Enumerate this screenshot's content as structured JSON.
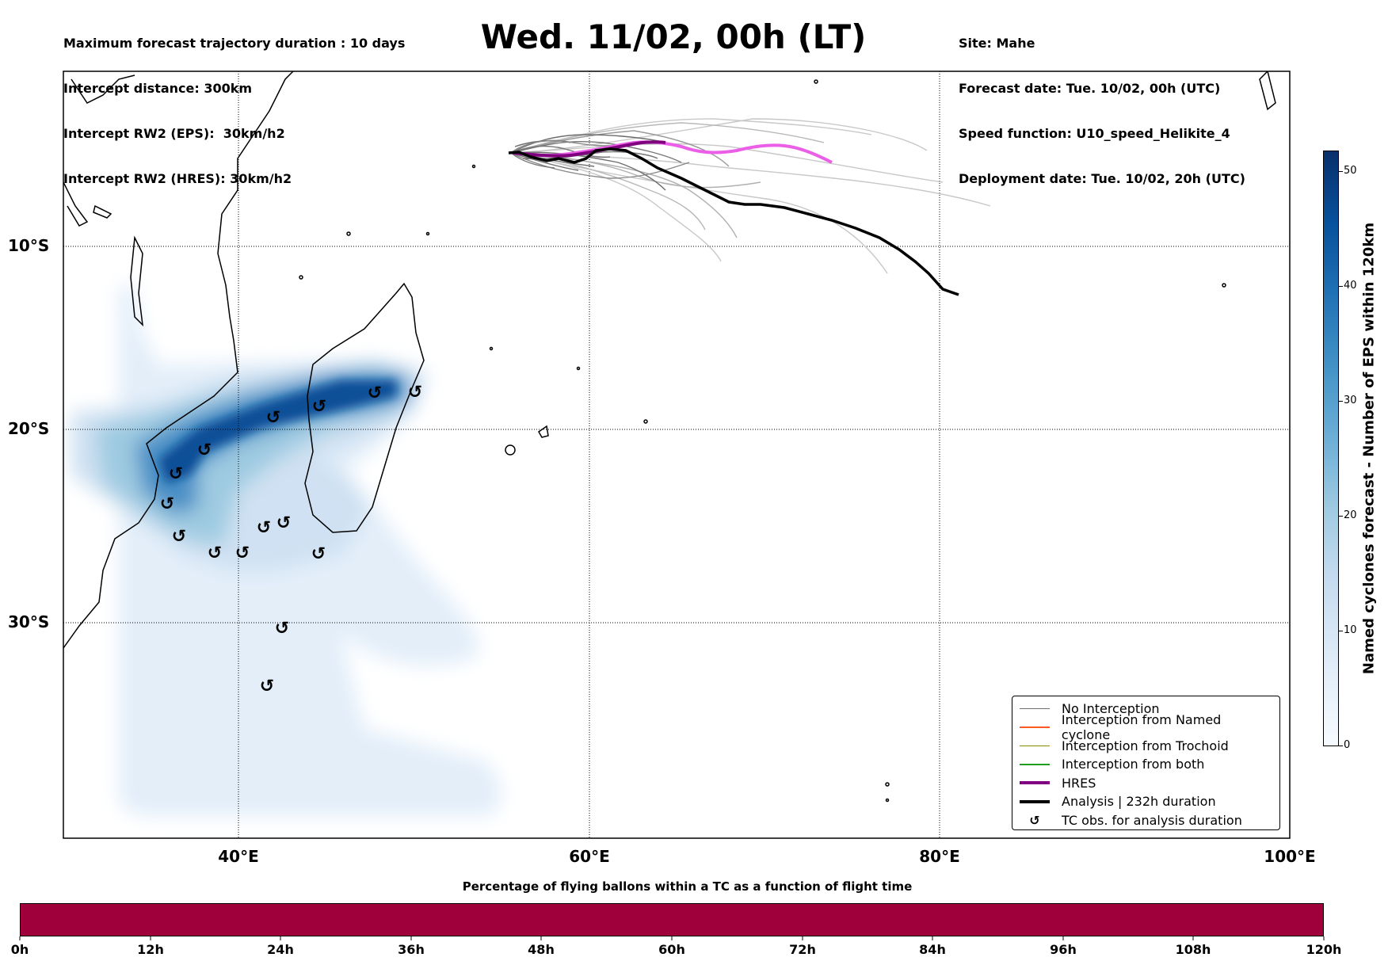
{
  "header": {
    "left_lines": [
      "Maximum forecast trajectory duration : 10 days",
      "Intercept distance: 300km",
      "Intercept RW2 (EPS):  30km/h2",
      "Intercept RW2 (HRES): 30km/h2"
    ],
    "title": "Wed. 11/02, 00h (LT)",
    "right_lines": [
      "Site: Mahe",
      "Forecast date: Tue. 10/02, 00h (UTC)",
      "Speed function: U10_speed_Helikite_4",
      "Deployment date: Tue. 10/02, 20h (UTC)"
    ]
  },
  "map": {
    "lat_labels": [
      "10°S",
      "20°S",
      "30°S"
    ],
    "lon_labels": [
      "40°E",
      "60°E",
      "80°E",
      "100°E"
    ],
    "colors": {
      "no_interception": "#6e6e6e",
      "named_cyclone": "#ff5a1f",
      "trochoid": "#8b8b00",
      "both": "#1f9e1f",
      "hres": "#800080",
      "hres_track": "#ea5ee8",
      "analysis": "#000000"
    }
  },
  "legend": {
    "items": [
      {
        "label": "No Interception",
        "color": "#6e6e6e",
        "style": "thin"
      },
      {
        "label": "Interception from Named cyclone",
        "color": "#ff5a1f",
        "style": "thin"
      },
      {
        "label": "Interception from Trochoid",
        "color": "#8b8b00",
        "style": "thin"
      },
      {
        "label": "Interception from both",
        "color": "#1f9e1f",
        "style": "thin"
      },
      {
        "label": "HRES",
        "color": "#800080",
        "style": "thick"
      },
      {
        "label": "Analysis | 232h duration",
        "color": "#000000",
        "style": "thick"
      },
      {
        "label": "TC obs. for analysis duration",
        "color": "#000000",
        "style": "symbol"
      }
    ],
    "tc_symbol": "↺"
  },
  "colorbar": {
    "label": "Named cyclones forecast - Number of EPS within 120km",
    "ticks": [
      "0",
      "10",
      "20",
      "30",
      "40",
      "50"
    ]
  },
  "flight_bar": {
    "title": "Percentage of flying ballons within a TC as a function of flight time",
    "ticks": [
      "0h",
      "12h",
      "24h",
      "36h",
      "48h",
      "60h",
      "72h",
      "84h",
      "96h",
      "108h",
      "120h"
    ],
    "fill_color": "#9f003b"
  }
}
